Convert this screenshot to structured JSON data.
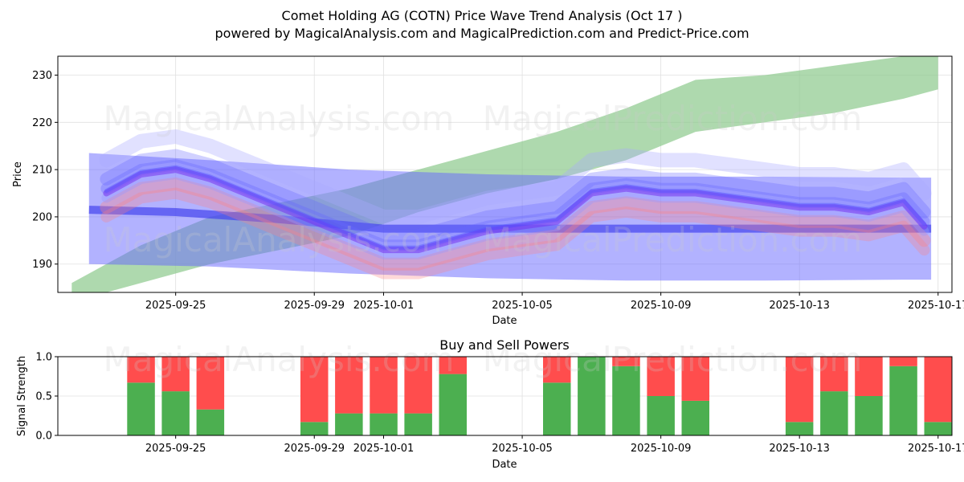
{
  "title_line1": "Comet Holding AG (COTN) Price Wave Trend Analysis (Oct 17 )",
  "title_line2": "powered by MagicalAnalysis.com and MagicalPrediction.com and Predict-Price.com",
  "watermarks": [
    "MagicalAnalysis.com",
    "MagicalPrediction.com"
  ],
  "colors": {
    "buy": "#4caf50",
    "sell": "#ff4d4d",
    "blue_band": "#6666ff",
    "green_band": "#8cc98c",
    "red_band": "#ff8080",
    "purple_line": "#7733ee"
  },
  "chart_data": [
    {
      "type": "area",
      "name": "price-wave-trend",
      "xlabel": "Date",
      "ylabel": "Price",
      "ylim": [
        184,
        234
      ],
      "yticks": [
        190,
        200,
        210,
        220,
        230
      ],
      "grid": true,
      "x_tick_labels": [
        "2025-09-25",
        "2025-09-29",
        "2025-10-01",
        "2025-10-05",
        "2025-10-09",
        "2025-10-13",
        "2025-10-17"
      ],
      "x_tick_days": [
        3,
        7,
        9,
        13,
        17,
        21,
        25
      ],
      "x_axis_note": "x values are day offsets from 2025-09-22",
      "x_range": [
        -0.4,
        25.4
      ],
      "series": [
        {
          "name": "green-band-upper",
          "x": [
            0,
            2,
            4,
            6,
            8,
            10,
            12,
            14,
            16,
            18,
            20,
            22,
            24,
            25
          ],
          "values": [
            186,
            194,
            200,
            203,
            206,
            210,
            214,
            218,
            223,
            229,
            230,
            232,
            234,
            234
          ]
        },
        {
          "name": "green-band-lower",
          "x": [
            0,
            2,
            4,
            6,
            8,
            10,
            12,
            14,
            16,
            18,
            20,
            22,
            24,
            25
          ],
          "values": [
            182,
            186,
            190,
            193,
            196,
            201,
            205,
            208,
            212,
            218,
            220,
            222,
            225,
            227
          ]
        },
        {
          "name": "blue-band-wide-upper",
          "x": [
            0.5,
            4,
            8,
            12,
            16,
            20,
            24,
            24.8
          ],
          "values": [
            213.5,
            212,
            210,
            209,
            208.5,
            208.5,
            208.3,
            208.3
          ]
        },
        {
          "name": "blue-band-wide-lower",
          "x": [
            0.5,
            4,
            8,
            12,
            16,
            20,
            24,
            24.8
          ],
          "values": [
            190,
            189.5,
            188,
            187,
            186.5,
            186.5,
            186.7,
            186.7
          ]
        },
        {
          "name": "trend-line",
          "x": [
            0.5,
            3,
            6,
            9,
            12,
            15,
            18,
            21,
            24,
            24.8
          ],
          "values": [
            201.5,
            201,
            199.5,
            197.5,
            197.5,
            197.5,
            197.5,
            197.5,
            197.5,
            197.5
          ]
        },
        {
          "name": "wave-center",
          "x": [
            1,
            2,
            3,
            4,
            5,
            6,
            7,
            8,
            9,
            10,
            11,
            12,
            13,
            14,
            15,
            16,
            17,
            18,
            19,
            20,
            21,
            22,
            23,
            24,
            24.6
          ],
          "values": [
            205,
            209,
            210,
            208,
            205,
            202,
            199,
            196,
            193,
            193,
            195,
            197,
            198,
            199,
            205,
            206,
            205,
            205,
            204,
            203,
            202,
            202,
            201,
            203,
            198
          ]
        }
      ]
    },
    {
      "type": "bar",
      "name": "buy-sell-powers",
      "title": "Buy and Sell Powers",
      "xlabel": "Date",
      "ylabel": "Signal Strength",
      "ylim": [
        0,
        1
      ],
      "yticks": [
        "0.0",
        "0.5",
        "1.0"
      ],
      "x_tick_labels": [
        "2025-09-25",
        "2025-09-29",
        "2025-10-01",
        "2025-10-05",
        "2025-10-09",
        "2025-10-13",
        "2025-10-17"
      ],
      "x_tick_days": [
        3,
        7,
        9,
        13,
        17,
        21,
        25
      ],
      "x_range": [
        -0.4,
        25.4
      ],
      "categories": [
        "2025-09-24",
        "2025-09-25",
        "2025-09-26",
        "2025-09-29",
        "2025-09-30",
        "2025-10-01",
        "2025-10-02",
        "2025-10-03",
        "2025-10-06",
        "2025-10-07",
        "2025-10-08",
        "2025-10-09",
        "2025-10-10",
        "2025-10-13",
        "2025-10-14",
        "2025-10-15",
        "2025-10-16",
        "2025-10-17"
      ],
      "x": [
        2,
        3,
        4,
        7,
        8,
        9,
        10,
        11,
        14,
        15,
        16,
        17,
        18,
        21,
        22,
        23,
        24,
        25
      ],
      "series": [
        {
          "name": "Buy",
          "values": [
            0.67,
            0.56,
            0.33,
            0.17,
            0.28,
            0.28,
            0.28,
            0.78,
            0.67,
            1.0,
            0.88,
            0.5,
            0.44,
            0.17,
            0.56,
            0.5,
            0.88,
            0.17
          ]
        },
        {
          "name": "Sell",
          "values": [
            0.33,
            0.44,
            0.67,
            0.83,
            0.72,
            0.72,
            0.72,
            0.22,
            0.33,
            0.0,
            0.12,
            0.5,
            0.56,
            0.83,
            0.44,
            0.5,
            0.12,
            0.83
          ]
        }
      ]
    }
  ]
}
